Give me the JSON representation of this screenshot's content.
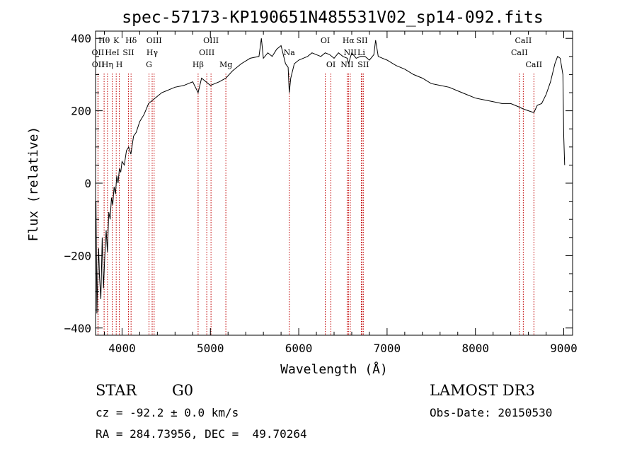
{
  "chart_data": {
    "type": "line",
    "title": "spec-57173-KP190651N485531V02_sp14-092.fits",
    "xlabel": "Wavelength (Å)",
    "ylabel": "Flux (relative)",
    "xlim": [
      3700,
      9100
    ],
    "ylim": [
      -420,
      420
    ],
    "xticks": [
      4000,
      5000,
      6000,
      7000,
      8000,
      9000
    ],
    "yticks": [
      -400,
      -200,
      0,
      200,
      400
    ],
    "yticklabels": [
      "−400",
      "−200",
      "0",
      "200",
      "400"
    ],
    "grid": false,
    "series": [
      {
        "name": "flux",
        "x": [
          3705,
          3715,
          3725,
          3735,
          3745,
          3760,
          3775,
          3790,
          3805,
          3820,
          3835,
          3850,
          3865,
          3880,
          3895,
          3910,
          3925,
          3940,
          3955,
          3970,
          3985,
          4000,
          4025,
          4050,
          4075,
          4100,
          4130,
          4160,
          4200,
          4250,
          4300,
          4350,
          4400,
          4450,
          4500,
          4600,
          4700,
          4800,
          4861,
          4900,
          5000,
          5100,
          5175,
          5250,
          5350,
          5450,
          5550,
          5577,
          5600,
          5650,
          5700,
          5750,
          5800,
          5850,
          5880,
          5893,
          5910,
          5950,
          6000,
          6050,
          6100,
          6150,
          6200,
          6250,
          6300,
          6350,
          6400,
          6450,
          6500,
          6550,
          6563,
          6600,
          6650,
          6700,
          6750,
          6800,
          6850,
          6870,
          6900,
          6950,
          7000,
          7100,
          7200,
          7300,
          7400,
          7500,
          7600,
          7700,
          7800,
          7900,
          8000,
          8100,
          8200,
          8300,
          8400,
          8498,
          8542,
          8600,
          8662,
          8700,
          8750,
          8800,
          8850,
          8900,
          8930,
          8960,
          8990,
          9000,
          9010
        ],
        "y": [
          -50,
          -360,
          -250,
          -180,
          -260,
          -320,
          -150,
          -290,
          -200,
          -130,
          -190,
          -80,
          -100,
          -40,
          -60,
          -10,
          -30,
          20,
          0,
          40,
          30,
          60,
          50,
          90,
          100,
          80,
          130,
          140,
          170,
          190,
          220,
          230,
          240,
          250,
          255,
          265,
          270,
          280,
          250,
          290,
          270,
          280,
          290,
          310,
          330,
          345,
          350,
          400,
          345,
          360,
          350,
          370,
          380,
          330,
          320,
          250,
          290,
          330,
          340,
          345,
          350,
          360,
          355,
          350,
          360,
          355,
          345,
          360,
          350,
          345,
          330,
          360,
          345,
          350,
          350,
          340,
          355,
          395,
          350,
          345,
          340,
          325,
          315,
          300,
          290,
          275,
          270,
          265,
          255,
          245,
          235,
          230,
          225,
          220,
          220,
          210,
          205,
          200,
          195,
          215,
          220,
          245,
          280,
          330,
          350,
          345,
          300,
          130,
          50
        ]
      }
    ],
    "lines": [
      {
        "name": "OII",
        "x": 3727,
        "label": "OII",
        "row": 2
      },
      {
        "name": "OII",
        "x": 3729,
        "label": "OII",
        "row": 3
      },
      {
        "name": "Hθ",
        "x": 3797,
        "label": "Hθ",
        "row": 1
      },
      {
        "name": "Hη",
        "x": 3835,
        "label": "Hη",
        "row": 3
      },
      {
        "name": "HeI",
        "x": 3889,
        "label": "HeI",
        "row": 2
      },
      {
        "name": "K",
        "x": 3934,
        "label": "K",
        "row": 1
      },
      {
        "name": "H",
        "x": 3969,
        "label": "H",
        "row": 3
      },
      {
        "name": "SII",
        "x": 4072,
        "label": "SII",
        "row": 2
      },
      {
        "name": "Hδ",
        "x": 4102,
        "label": "Hδ",
        "row": 1
      },
      {
        "name": "Hγ",
        "x": 4341,
        "label": "Hγ",
        "row": 2
      },
      {
        "name": "G",
        "x": 4305,
        "label": "G",
        "row": 3
      },
      {
        "name": "OIII",
        "x": 4363,
        "label": "OIII",
        "row": 1
      },
      {
        "name": "Hβ",
        "x": 4861,
        "label": "Hβ",
        "row": 3
      },
      {
        "name": "OIII",
        "x": 4959,
        "label": "OIII",
        "row": 2
      },
      {
        "name": "OIII",
        "x": 5007,
        "label": "OIII",
        "row": 1
      },
      {
        "name": "Mg",
        "x": 5175,
        "label": "Mg",
        "row": 3
      },
      {
        "name": "Na",
        "x": 5893,
        "label": "Na",
        "row": 2
      },
      {
        "name": "OI",
        "x": 6300,
        "label": "OI",
        "row": 1
      },
      {
        "name": "OI",
        "x": 6364,
        "label": "OI",
        "row": 3
      },
      {
        "name": "NII",
        "x": 6548,
        "label": "NII",
        "row": 3
      },
      {
        "name": "Hα",
        "x": 6563,
        "label": "Hα",
        "row": 1
      },
      {
        "name": "NII",
        "x": 6583,
        "label": "NII",
        "row": 2
      },
      {
        "name": "Li",
        "x": 6708,
        "label": "Li",
        "row": 2
      },
      {
        "name": "SII",
        "x": 6716,
        "label": "SII",
        "row": 1
      },
      {
        "name": "SII",
        "x": 6731,
        "label": "SII",
        "row": 3
      },
      {
        "name": "CaII",
        "x": 8498,
        "label": "CaII",
        "row": 2
      },
      {
        "name": "CaII",
        "x": 8542,
        "label": "CaII",
        "row": 1
      },
      {
        "name": "CaII",
        "x": 8662,
        "label": "CaII",
        "row": 3
      }
    ]
  },
  "info": {
    "class_label": "STAR",
    "subclass_label": "G0",
    "survey": "LAMOST DR3",
    "redshift": "cz = -92.2 ± 0.0 km/s",
    "obs_date": "Obs-Date: 20150530",
    "coords": "RA = 284.73956, DEC =  49.70264"
  }
}
